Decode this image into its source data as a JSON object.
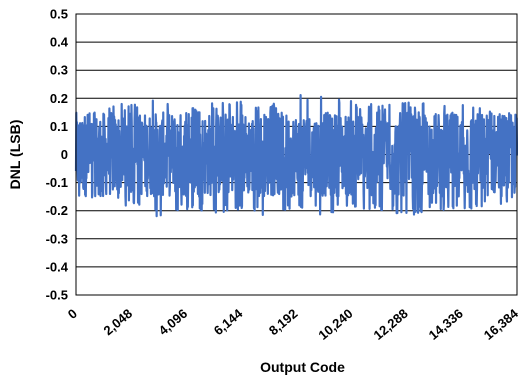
{
  "chart_data": {
    "type": "line",
    "title": "",
    "xlabel": "Output Code",
    "ylabel": "DNL (LSB)",
    "xlim": [
      0,
      16384
    ],
    "ylim": [
      -0.5,
      0.5
    ],
    "x_ticks": [
      0,
      2048,
      4096,
      6144,
      8192,
      10240,
      12288,
      14336,
      16384
    ],
    "x_tick_labels": [
      "0",
      "2,048",
      "4,096",
      "6,144",
      "8,192",
      "10,240",
      "12,288",
      "14,336",
      "16,384"
    ],
    "y_ticks": [
      0.5,
      0.4,
      0.3,
      0.2,
      0.1,
      0,
      -0.1,
      -0.2,
      -0.3,
      -0.4,
      -0.5
    ],
    "y_tick_labels": [
      "0.5",
      "0.4",
      "0.3",
      "0.2",
      "0.1",
      "0",
      "-0.1",
      "-0.2",
      "-0.3",
      "-0.4",
      "-0.5"
    ],
    "grid": "horizontal",
    "legend": "none",
    "series": [
      {
        "color": "#4472C4",
        "x": [
          0,
          1024,
          2048,
          3072,
          4096,
          5120,
          6144,
          7168,
          8192,
          9216,
          10240,
          11264,
          12288,
          13312,
          14336,
          15360,
          16384
        ],
        "envelope_max": [
          0.13,
          0.18,
          0.18,
          0.22,
          0.16,
          0.19,
          0.19,
          0.17,
          0.24,
          0.21,
          0.19,
          0.18,
          0.2,
          0.18,
          0.18,
          0.16,
          0.13
        ],
        "envelope_min": [
          -0.16,
          -0.15,
          -0.19,
          -0.23,
          -0.2,
          -0.21,
          -0.21,
          -0.22,
          -0.2,
          -0.22,
          -0.2,
          -0.2,
          -0.22,
          -0.2,
          -0.2,
          -0.19,
          -0.16
        ],
        "typical_band": [
          -0.15,
          0.15
        ]
      }
    ]
  }
}
